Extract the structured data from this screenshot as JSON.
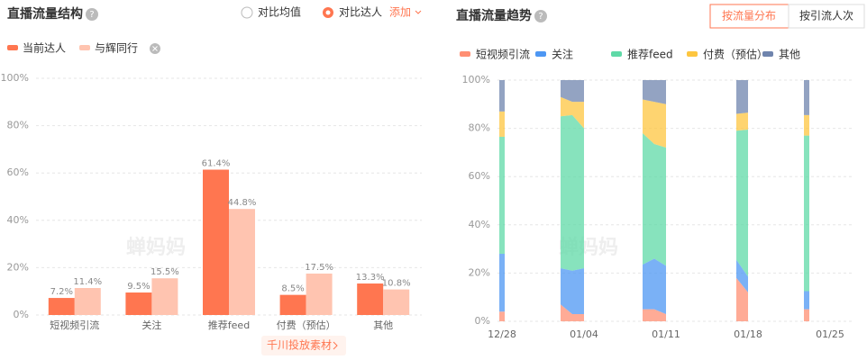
{
  "chart_data": [
    {
      "type": "bar",
      "title": "直播流量结构",
      "options": [
        "对比均值",
        "对比达人"
      ],
      "add_label": "添加",
      "button": "千川投放素材",
      "watermark": "蝉妈妈",
      "categories": [
        "短视频引流",
        "关注",
        "推荐feed",
        "付费（预估）",
        "其他"
      ],
      "series": [
        {
          "name": "当前达人",
          "color": "#ff7650",
          "values": [
            7.2,
            9.5,
            61.4,
            8.5,
            13.3
          ],
          "value_labels": [
            "7.2%",
            "9.5%",
            "61.4%",
            "8.5%",
            "13.3%"
          ]
        },
        {
          "name": "与辉同行",
          "color": "#ffc4b0",
          "values": [
            11.4,
            15.5,
            44.8,
            17.5,
            10.8
          ],
          "value_labels": [
            "11.4%",
            "15.5%",
            "44.8%",
            "17.5%",
            "10.8%"
          ]
        }
      ],
      "ylim": [
        0,
        100
      ],
      "yticks": [
        {
          "value": 0,
          "label": "0%"
        },
        {
          "value": 20,
          "label": "20%"
        },
        {
          "value": 40,
          "label": "40%"
        },
        {
          "value": 60,
          "label": "60%"
        },
        {
          "value": 80,
          "label": "80%"
        },
        {
          "value": 100,
          "label": "100%"
        }
      ],
      "grid": true
    },
    {
      "type": "area",
      "title": "直播流量趋势",
      "stacked": true,
      "buttons": [
        "按流量分布",
        "按引流人次"
      ],
      "watermark": "蝉妈妈",
      "categories": [
        "12/28",
        null,
        null,
        null,
        null,
        null,
        null,
        "01/04",
        null,
        null,
        null,
        null,
        null,
        null,
        "01/11",
        null,
        null,
        null,
        null,
        null,
        null,
        "01/18",
        null,
        null,
        null,
        null,
        null,
        null,
        "01/25"
      ],
      "series": [
        {
          "name": "短视频引流",
          "color": "#ff8f73",
          "values": [
            4,
            null,
            null,
            null,
            null,
            7,
            3,
            3,
            null,
            null,
            null,
            null,
            5,
            5,
            3,
            null,
            null,
            null,
            null,
            null,
            18,
            12,
            null,
            null,
            null,
            null,
            5,
            null,
            null
          ]
        },
        {
          "name": "关注",
          "color": "#4d97f3",
          "values": [
            24,
            null,
            null,
            null,
            null,
            15,
            18,
            19,
            null,
            null,
            null,
            null,
            18.5,
            21,
            20,
            null,
            null,
            null,
            null,
            null,
            7.5,
            6.5,
            null,
            null,
            null,
            null,
            7.5,
            null,
            null
          ]
        },
        {
          "name": "推荐feed",
          "color": "#5fd9a7",
          "values": [
            48.5,
            null,
            null,
            null,
            null,
            63,
            64.5,
            58,
            null,
            null,
            null,
            null,
            54.5,
            47.5,
            49,
            null,
            null,
            null,
            null,
            null,
            53.5,
            61,
            null,
            null,
            null,
            null,
            64.5,
            null,
            null
          ]
        },
        {
          "name": "付费（预估）",
          "color": "#fdc640",
          "values": [
            10.5,
            null,
            null,
            null,
            null,
            8,
            5.5,
            11,
            null,
            null,
            null,
            null,
            14,
            17.5,
            18,
            null,
            null,
            null,
            null,
            null,
            7,
            7,
            null,
            null,
            null,
            null,
            8.5,
            null,
            null
          ]
        },
        {
          "name": "其他",
          "color": "#6f84ad",
          "values": [
            13,
            null,
            null,
            null,
            null,
            7,
            9,
            9,
            null,
            null,
            null,
            null,
            8,
            9,
            10,
            null,
            null,
            null,
            null,
            null,
            14,
            13.5,
            null,
            null,
            null,
            null,
            14.5,
            null,
            null
          ]
        }
      ],
      "ylim": [
        0,
        100
      ],
      "yticks": [
        {
          "value": 0,
          "label": "0%"
        },
        {
          "value": 20,
          "label": "20%"
        },
        {
          "value": 40,
          "label": "40%"
        },
        {
          "value": 60,
          "label": "60%"
        },
        {
          "value": 80,
          "label": "80%"
        },
        {
          "value": 100,
          "label": "100%"
        }
      ],
      "grid": true
    }
  ]
}
